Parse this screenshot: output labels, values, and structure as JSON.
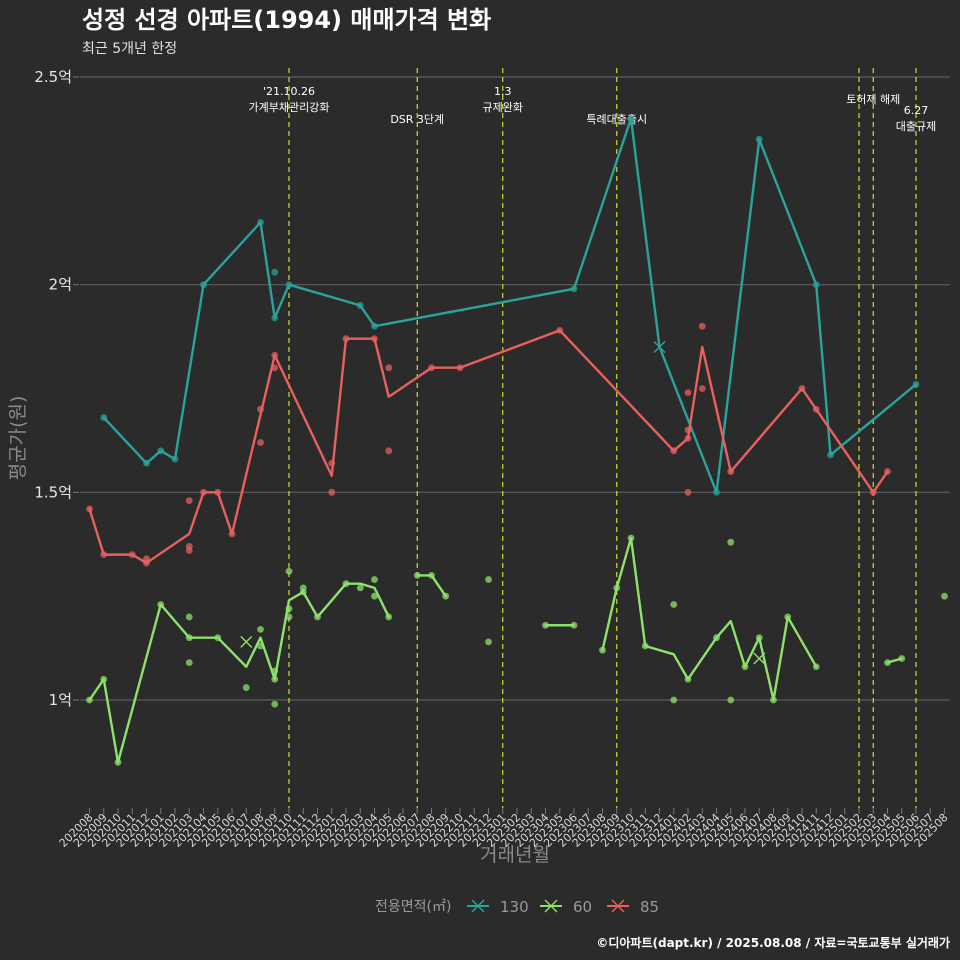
{
  "chart_data": {
    "type": "line",
    "title": "성정 선경 아파트(1994) 매매가격 변화",
    "subtitle": "최근 5개년 한정",
    "xlabel": "거래년월",
    "ylabel": "평균가(원)",
    "caption": "©디아파트(dapt.kr) / 2025.08.08 / 자료=국토교통부 실거래가",
    "y_ticks": [
      {
        "value": 1.0,
        "label": "1억"
      },
      {
        "value": 1.5,
        "label": "1.5억"
      },
      {
        "value": 2.0,
        "label": "2억"
      },
      {
        "value": 2.5,
        "label": "2.5억"
      }
    ],
    "ylim": [
      0.79,
      2.52
    ],
    "categories": [
      "202008",
      "202009",
      "202010",
      "202011",
      "202012",
      "202101",
      "202102",
      "202103",
      "202104",
      "202105",
      "202106",
      "202107",
      "202108",
      "202109",
      "202110",
      "202111",
      "202112",
      "202201",
      "202202",
      "202203",
      "202204",
      "202205",
      "202206",
      "202207",
      "202208",
      "202209",
      "202210",
      "202211",
      "202212",
      "202301",
      "202302",
      "202303",
      "202304",
      "202305",
      "202306",
      "202307",
      "202308",
      "202309",
      "202310",
      "202311",
      "202312",
      "202401",
      "202402",
      "202403",
      "202404",
      "202405",
      "202406",
      "202407",
      "202408",
      "202409",
      "202410",
      "202411",
      "202412",
      "202501",
      "202502",
      "202503",
      "202504",
      "202505",
      "202506",
      "202507",
      "202508"
    ],
    "annotations": [
      {
        "x": 14.0,
        "lines": [
          "'21.10.26",
          "가계부채관리강화"
        ],
        "row": 0
      },
      {
        "x": 23.0,
        "lines": [
          "DSR 3단계"
        ],
        "row": 1
      },
      {
        "x": 29.0,
        "lines": [
          "1.3",
          "규제완화"
        ],
        "row": 0
      },
      {
        "x": 37.0,
        "lines": [
          "특례대출출시"
        ],
        "row": 1
      },
      {
        "x": 54.0,
        "lines": [
          ""
        ],
        "row": 0
      },
      {
        "x": 55.0,
        "lines": [
          "토허제 해제"
        ],
        "row": 0
      },
      {
        "x": 58.0,
        "lines": [
          "6.27",
          "대출규제"
        ],
        "row": 1
      }
    ],
    "legend_title": "전용면적(㎡)",
    "series": [
      {
        "name": "130",
        "color": "#2aa39b",
        "line": [
          [
            1,
            1.68
          ],
          [
            4,
            1.57
          ],
          [
            5,
            1.6
          ],
          [
            6,
            1.58
          ],
          [
            8,
            2.0
          ],
          [
            12,
            2.15
          ],
          [
            13,
            1.92
          ],
          [
            14,
            2.0
          ],
          [
            19,
            1.95
          ],
          [
            20,
            1.9
          ],
          [
            34,
            1.99
          ],
          [
            38,
            2.4
          ],
          [
            40,
            1.85
          ],
          [
            44,
            1.5
          ],
          [
            47,
            2.35
          ],
          [
            51,
            2.0
          ],
          [
            52,
            1.59
          ],
          [
            58,
            1.76
          ]
        ],
        "points": [
          [
            1,
            1.68
          ],
          [
            4,
            1.57
          ],
          [
            5,
            1.6
          ],
          [
            6,
            1.58
          ],
          [
            8,
            2.0
          ],
          [
            12,
            2.15
          ],
          [
            13,
            2.03
          ],
          [
            13,
            1.92
          ],
          [
            14,
            2.0
          ],
          [
            19,
            1.95
          ],
          [
            20,
            1.9
          ],
          [
            34,
            1.99
          ],
          [
            38,
            2.4
          ],
          [
            44,
            1.5
          ],
          [
            47,
            2.35
          ],
          [
            51,
            2.0
          ],
          [
            52,
            1.59
          ],
          [
            58,
            1.76
          ]
        ],
        "crosses": [
          [
            40,
            1.85
          ]
        ]
      },
      {
        "name": "60",
        "color": "#8ee26b",
        "line": [
          [
            0,
            1.0
          ],
          [
            1,
            1.05
          ],
          [
            2,
            0.85
          ],
          [
            5,
            1.23
          ],
          [
            7,
            1.15
          ],
          [
            9,
            1.15
          ],
          [
            11,
            1.08
          ],
          [
            12,
            1.15
          ],
          [
            13,
            1.05
          ],
          [
            14,
            1.24
          ],
          [
            15,
            1.26
          ],
          [
            16,
            1.2
          ],
          [
            18,
            1.28
          ],
          [
            19,
            1.28
          ],
          [
            20,
            1.27
          ],
          [
            21,
            1.2
          ]
        ],
        "segments": [
          [
            [
              23,
              1.3
            ],
            [
              24,
              1.3
            ],
            [
              25,
              1.25
            ]
          ],
          [
            [
              32,
              1.18
            ],
            [
              34,
              1.18
            ]
          ],
          [
            [
              36,
              1.12
            ],
            [
              37,
              1.27
            ],
            [
              38,
              1.39
            ],
            [
              39,
              1.13
            ],
            [
              41,
              1.11
            ],
            [
              42,
              1.05
            ],
            [
              44,
              1.15
            ],
            [
              45,
              1.19
            ],
            [
              46,
              1.08
            ],
            [
              47,
              1.15
            ],
            [
              48,
              1.0
            ],
            [
              49,
              1.2
            ],
            [
              51,
              1.08
            ]
          ],
          [
            [
              56,
              1.09
            ],
            [
              57,
              1.1
            ]
          ]
        ],
        "points": [
          [
            0,
            1.0
          ],
          [
            1,
            1.05
          ],
          [
            2,
            0.85
          ],
          [
            5,
            1.23
          ],
          [
            7,
            1.15
          ],
          [
            7,
            1.2
          ],
          [
            7,
            1.09
          ],
          [
            9,
            1.15
          ],
          [
            11,
            1.03
          ],
          [
            12,
            1.17
          ],
          [
            12,
            1.13
          ],
          [
            13,
            1.07
          ],
          [
            13,
            0.99
          ],
          [
            13,
            1.05
          ],
          [
            14,
            1.31
          ],
          [
            14,
            1.22
          ],
          [
            14,
            1.2
          ],
          [
            15,
            1.27
          ],
          [
            15,
            1.26
          ],
          [
            16,
            1.2
          ],
          [
            18,
            1.28
          ],
          [
            19,
            1.27
          ],
          [
            20,
            1.25
          ],
          [
            20,
            1.29
          ],
          [
            21,
            1.2
          ],
          [
            23,
            1.3
          ],
          [
            24,
            1.3
          ],
          [
            25,
            1.25
          ],
          [
            28,
            1.29
          ],
          [
            28,
            1.14
          ],
          [
            32,
            1.18
          ],
          [
            34,
            1.18
          ],
          [
            36,
            1.12
          ],
          [
            37,
            1.27
          ],
          [
            38,
            1.39
          ],
          [
            39,
            1.13
          ],
          [
            41,
            1.23
          ],
          [
            41,
            1.0
          ],
          [
            42,
            1.05
          ],
          [
            44,
            1.15
          ],
          [
            45,
            1.38
          ],
          [
            45,
            1.0
          ],
          [
            46,
            1.08
          ],
          [
            47,
            1.15
          ],
          [
            48,
            1.0
          ],
          [
            49,
            1.2
          ],
          [
            51,
            1.08
          ],
          [
            56,
            1.09
          ],
          [
            57,
            1.1
          ],
          [
            60,
            1.25
          ]
        ],
        "crosses": [
          [
            11,
            1.14
          ],
          [
            47,
            1.1
          ]
        ]
      },
      {
        "name": "85",
        "color": "#e8605f",
        "line": [
          [
            0,
            1.46
          ],
          [
            1,
            1.35
          ],
          [
            3,
            1.35
          ],
          [
            4,
            1.33
          ],
          [
            7,
            1.4
          ],
          [
            8,
            1.5
          ],
          [
            9,
            1.5
          ],
          [
            10,
            1.4
          ],
          [
            13,
            1.83
          ],
          [
            17,
            1.54
          ],
          [
            18,
            1.87
          ],
          [
            20,
            1.87
          ],
          [
            21,
            1.73
          ],
          [
            24,
            1.8
          ],
          [
            26,
            1.8
          ],
          [
            33,
            1.89
          ],
          [
            41,
            1.6
          ],
          [
            42,
            1.63
          ],
          [
            43,
            1.85
          ],
          [
            45,
            1.55
          ],
          [
            50,
            1.75
          ],
          [
            51,
            1.7
          ],
          [
            55,
            1.5
          ],
          [
            56,
            1.55
          ]
        ],
        "points": [
          [
            0,
            1.46
          ],
          [
            1,
            1.35
          ],
          [
            3,
            1.35
          ],
          [
            4,
            1.33
          ],
          [
            4,
            1.34
          ],
          [
            7,
            1.48
          ],
          [
            7,
            1.36
          ],
          [
            7,
            1.37
          ],
          [
            8,
            1.5
          ],
          [
            9,
            1.5
          ],
          [
            10,
            1.4
          ],
          [
            12,
            1.7
          ],
          [
            12,
            1.62
          ],
          [
            13,
            1.83
          ],
          [
            13,
            1.8
          ],
          [
            17,
            1.57
          ],
          [
            17,
            1.5
          ],
          [
            18,
            1.87
          ],
          [
            20,
            1.87
          ],
          [
            21,
            1.8
          ],
          [
            21,
            1.6
          ],
          [
            24,
            1.8
          ],
          [
            26,
            1.8
          ],
          [
            33,
            1.89
          ],
          [
            41,
            1.6
          ],
          [
            42,
            1.63
          ],
          [
            42,
            1.65
          ],
          [
            42,
            1.74
          ],
          [
            42,
            1.5
          ],
          [
            43,
            1.9
          ],
          [
            43,
            1.75
          ],
          [
            45,
            1.55
          ],
          [
            50,
            1.75
          ],
          [
            51,
            1.7
          ],
          [
            55,
            1.5
          ],
          [
            56,
            1.55
          ]
        ],
        "crosses": []
      }
    ]
  }
}
